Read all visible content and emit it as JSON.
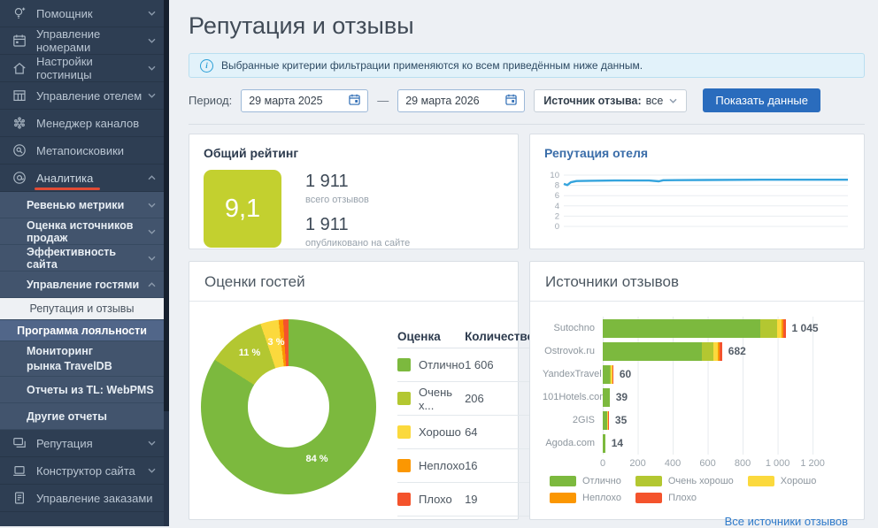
{
  "page": {
    "title": "Репутация и отзывы",
    "banner": "Выбранные критерии фильтрации применяются ко всем приведённым ниже данным."
  },
  "filters": {
    "period_label": "Период:",
    "date_from": "29 марта 2025",
    "range_separator": "—",
    "date_to": "29 марта 2026",
    "source_label": "Источник отзыва:",
    "source_value": "все",
    "submit_label": "Показать данные"
  },
  "sidebar": {
    "items": [
      {
        "key": "assistant",
        "label": "Помощник",
        "level": 1,
        "icon": "lightbulb",
        "chevron": "down"
      },
      {
        "key": "room-management",
        "label": "Управление номерами",
        "level": 1,
        "icon": "calendar",
        "chevron": "down"
      },
      {
        "key": "hotel-settings",
        "label": "Настройки гостиницы",
        "level": 1,
        "icon": "house",
        "chevron": "down"
      },
      {
        "key": "hotel-management",
        "label": "Управление отелем",
        "level": 1,
        "icon": "table",
        "chevron": "down"
      },
      {
        "key": "channel-manager",
        "label": "Менеджер каналов",
        "level": 1,
        "icon": "hub"
      },
      {
        "key": "metasearch",
        "label": "Метапоисковики",
        "level": 1,
        "icon": "magnifier-badge"
      },
      {
        "key": "analytics",
        "label": "Аналитика",
        "level": 1,
        "icon": "at-circle",
        "chevron": "up",
        "underline": true
      },
      {
        "key": "revenue-metrics",
        "label": "Ревенью метрики",
        "level": 2,
        "chevron": "down"
      },
      {
        "key": "sales-sources",
        "label": "Оценка источников продаж",
        "level": 2,
        "chevron": "down"
      },
      {
        "key": "site-effectiveness",
        "label": "Эффективность сайта",
        "level": 2,
        "chevron": "down"
      },
      {
        "key": "guest-management",
        "label": "Управление гостями",
        "level": 2,
        "chevron": "up"
      },
      {
        "key": "reputation-reviews",
        "label": "Репутация и отзывы",
        "level": 3,
        "state": "active"
      },
      {
        "key": "loyalty-program",
        "label": "Программа лояльности",
        "level": 3,
        "state": "highlight"
      },
      {
        "key": "market-monitoring-traveldb",
        "label": "Мониторинг рынка TravelDB",
        "level": 2,
        "wrap": true
      },
      {
        "key": "tl-webpms-reports",
        "label": "Отчеты из TL: WebPMS",
        "level": 2
      },
      {
        "key": "other-reports",
        "label": "Другие отчеты",
        "level": 2
      },
      {
        "key": "reputation",
        "label": "Репутация",
        "level": 1,
        "icon": "chat",
        "chevron": "down"
      },
      {
        "key": "site-builder",
        "label": "Конструктор сайта",
        "level": 1,
        "icon": "laptop",
        "chevron": "down"
      },
      {
        "key": "order-management",
        "label": "Управление заказами",
        "level": 1,
        "icon": "document"
      }
    ]
  },
  "overall_rating": {
    "title": "Общий рейтинг",
    "score": "9,1",
    "score_color": "#c3d02f",
    "total_reviews": "1 911",
    "total_caption": "всего отзывов",
    "published_reviews": "1 911",
    "published_caption": "опубликовано на сайте"
  },
  "hotel_reputation": {
    "title": "Репутация отеля",
    "chart_data": {
      "type": "line",
      "ylim": [
        0,
        10
      ],
      "yticks": [
        10,
        8,
        6,
        4,
        2,
        0
      ],
      "line_color": "#35a4dd",
      "grid": true,
      "points": [
        [
          0,
          8.3
        ],
        [
          0.012,
          8.05
        ],
        [
          0.025,
          8.6
        ],
        [
          0.045,
          8.85
        ],
        [
          0.09,
          8.9
        ],
        [
          0.18,
          8.95
        ],
        [
          0.3,
          8.95
        ],
        [
          0.335,
          8.8
        ],
        [
          0.35,
          9.0
        ],
        [
          0.5,
          9.05
        ],
        [
          0.7,
          9.1
        ],
        [
          1,
          9.1
        ]
      ]
    }
  },
  "guest_ratings": {
    "title": "Оценки гостей",
    "table": {
      "headers": [
        "Оценка",
        "Количество"
      ],
      "rows": [
        {
          "label": "Отлично",
          "value": "1 606",
          "color": "#7cb93e"
        },
        {
          "label": "Очень х...",
          "value": "206",
          "color": "#b3c731"
        },
        {
          "label": "Хорошо",
          "value": "64",
          "color": "#fbd93d"
        },
        {
          "label": "Неплохо",
          "value": "16",
          "color": "#fb9702"
        },
        {
          "label": "Плохо",
          "value": "19",
          "color": "#f4532c"
        }
      ]
    },
    "chart_data": {
      "type": "pie",
      "donut": true,
      "categories": [
        "Отлично",
        "Очень хорошо",
        "Хорошо",
        "Неплохо",
        "Плохо"
      ],
      "values": [
        1606,
        206,
        64,
        16,
        19
      ],
      "colors": [
        "#7cb93e",
        "#b3c731",
        "#fbd93d",
        "#fb9702",
        "#f4532c"
      ],
      "slice_labels": [
        {
          "text": "84 %",
          "x": 131,
          "y": 158
        },
        {
          "text": "11 %",
          "x": 55,
          "y": 38
        },
        {
          "text": "3 %",
          "x": 85,
          "y": 26
        }
      ]
    }
  },
  "review_sources": {
    "title": "Источники отзывов",
    "link_label": "Все источники отзывов",
    "chart_data": {
      "type": "bar",
      "orientation": "horizontal",
      "categories": [
        "Sutochno",
        "Ostrovok.ru",
        "YandexTravel",
        "101Hotels.com",
        "2GIS",
        "Agoda.com"
      ],
      "totals": [
        1045,
        682,
        60,
        39,
        35,
        14
      ],
      "total_labels": [
        "1 045",
        "682",
        "60",
        "39",
        "35",
        "14"
      ],
      "series": [
        {
          "name": "Отлично",
          "color": "#7cb93e",
          "values": [
            900,
            565,
            40,
            39,
            27,
            14
          ]
        },
        {
          "name": "Очень хорошо",
          "color": "#b3c731",
          "values": [
            95,
            70,
            6,
            0,
            0,
            0
          ]
        },
        {
          "name": "Хорошо",
          "color": "#fbd93d",
          "values": [
            25,
            22,
            8,
            0,
            1,
            0
          ]
        },
        {
          "name": "Неплохо",
          "color": "#fb9702",
          "values": [
            10,
            10,
            3,
            0,
            4,
            0
          ]
        },
        {
          "name": "Плохо",
          "color": "#f4532c",
          "values": [
            15,
            15,
            3,
            0,
            3,
            0
          ]
        }
      ],
      "xlim": [
        0,
        1260
      ],
      "xticks": [
        {
          "value": 0,
          "label": "0"
        },
        {
          "value": 200,
          "label": "200"
        },
        {
          "value": 400,
          "label": "400"
        },
        {
          "value": 600,
          "label": "600"
        },
        {
          "value": 800,
          "label": "800"
        },
        {
          "value": 1000,
          "label": "1 000"
        },
        {
          "value": 1200,
          "label": "1 200"
        }
      ],
      "legend_position": "bottom"
    }
  },
  "colors": {
    "sidebar_bg": "#2e3e53",
    "accent_red": "#e14b35",
    "primary_button": "#2a6cbd",
    "link_blue": "#2f7ac9",
    "main_bg": "#edf0f4"
  }
}
